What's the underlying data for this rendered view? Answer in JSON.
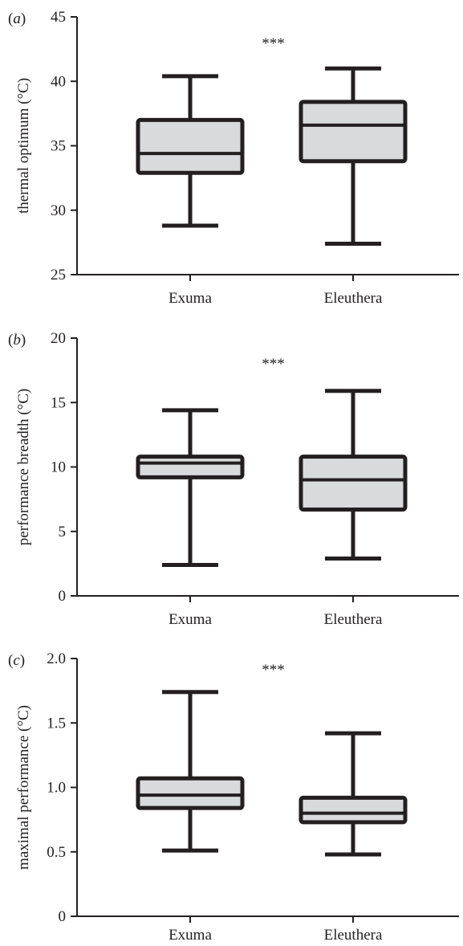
{
  "chart_data": [
    {
      "type": "box",
      "panel_label": "a",
      "ylabel": "thermal optimum (°C)",
      "ylim": [
        25,
        45
      ],
      "yticks": [
        25,
        30,
        35,
        40,
        45
      ],
      "yticklabels": [
        "25",
        "30",
        "35",
        "40",
        "45"
      ],
      "categories": [
        "Exuma",
        "Eleuthera"
      ],
      "significance": "***",
      "boxes": [
        {
          "category": "Exuma",
          "min": 28.8,
          "q1": 32.9,
          "median": 34.4,
          "q3": 37.0,
          "max": 40.4
        },
        {
          "category": "Eleuthera",
          "min": 27.4,
          "q1": 33.8,
          "median": 36.6,
          "q3": 38.4,
          "max": 41.0
        }
      ],
      "box_fill": "#d9dadb",
      "line_color": "#231f20"
    },
    {
      "type": "box",
      "panel_label": "b",
      "ylabel": "performance breadth (°C)",
      "ylim": [
        0,
        20
      ],
      "yticks": [
        0,
        5,
        10,
        15,
        20
      ],
      "yticklabels": [
        "0",
        "5",
        "10",
        "15",
        "20"
      ],
      "categories": [
        "Exuma",
        "Eleuthera"
      ],
      "significance": "***",
      "boxes": [
        {
          "category": "Exuma",
          "min": 2.4,
          "q1": 9.2,
          "median": 10.3,
          "q3": 10.8,
          "max": 14.4
        },
        {
          "category": "Eleuthera",
          "min": 2.9,
          "q1": 6.7,
          "median": 9.0,
          "q3": 10.8,
          "max": 15.9
        }
      ],
      "box_fill": "#d9dadb",
      "line_color": "#231f20"
    },
    {
      "type": "box",
      "panel_label": "c",
      "ylabel": "maximal performance (°C)",
      "ylim": [
        0,
        2.0
      ],
      "yticks": [
        0,
        0.5,
        1.0,
        1.5,
        2.0
      ],
      "yticklabels": [
        "0",
        "0.5",
        "1.0",
        "1.5",
        "2.0"
      ],
      "categories": [
        "Exuma",
        "Eleuthera"
      ],
      "significance": "***",
      "boxes": [
        {
          "category": "Exuma",
          "min": 0.51,
          "q1": 0.84,
          "median": 0.94,
          "q3": 1.07,
          "max": 1.74
        },
        {
          "category": "Eleuthera",
          "min": 0.48,
          "q1": 0.73,
          "median": 0.8,
          "q3": 0.92,
          "max": 1.42
        }
      ],
      "box_fill": "#d9dadb",
      "line_color": "#231f20"
    }
  ]
}
